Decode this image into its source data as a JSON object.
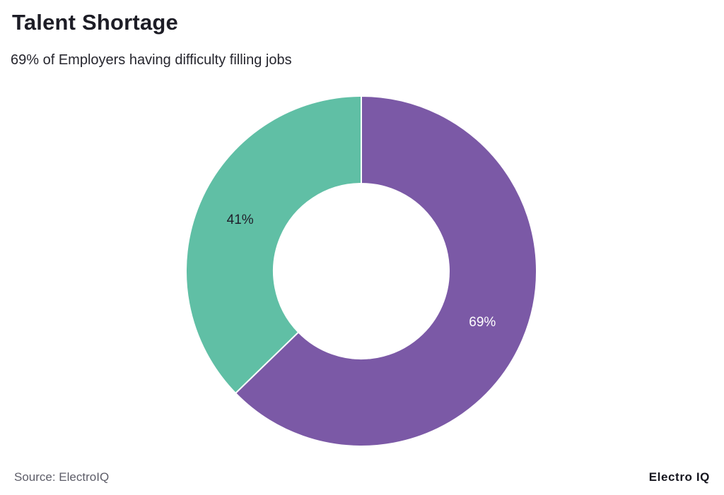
{
  "header": {
    "title": "Talent Shortage",
    "subtitle": "69% of Employers having difficulty filling jobs"
  },
  "footer": {
    "source": "Source: ElectroIQ",
    "brand": "Electro IQ"
  },
  "chart_data": {
    "type": "pie",
    "subtype": "donut",
    "title": "Talent Shortage",
    "start_angle_deg": 0,
    "direction": "clockwise",
    "inner_radius_ratio": 0.5,
    "legend_position": "none",
    "background_color": "#ffffff",
    "segment_border_color": "#ffffff",
    "segments": [
      {
        "label": "69%",
        "value": 69,
        "color": "#7b59a6",
        "label_color": "#ffffff"
      },
      {
        "label": "41%",
        "value": 41,
        "color": "#60bfa5",
        "label_color": "#20202b"
      }
    ]
  }
}
